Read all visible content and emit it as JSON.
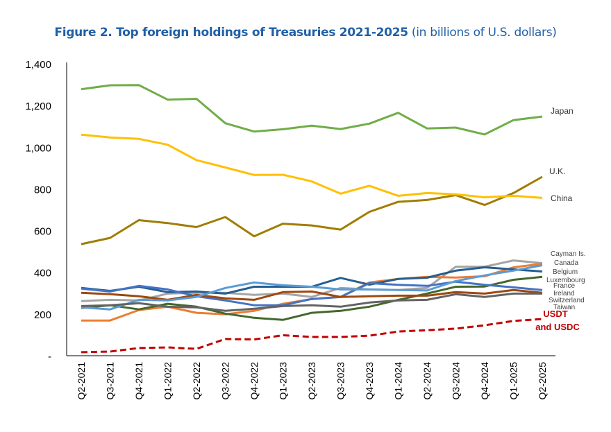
{
  "chart_data": {
    "type": "line",
    "title": "Figure 2. Top foreign holdings of Treasuries 2021-2025",
    "subtitle": "(in billions of U.S. dollars)",
    "xlabel": "",
    "ylabel": "",
    "ylim": [
      0,
      1400
    ],
    "yticks": [
      {
        "value": 0,
        "label": "-"
      },
      {
        "value": 200,
        "label": "200"
      },
      {
        "value": 400,
        "label": "400"
      },
      {
        "value": 600,
        "label": "600"
      },
      {
        "value": 800,
        "label": "800"
      },
      {
        "value": 1000,
        "label": "1,000"
      },
      {
        "value": 1200,
        "label": "1,200"
      },
      {
        "value": 1400,
        "label": "1,400"
      }
    ],
    "grid": false,
    "legend": "direct labels at right",
    "categories": [
      "Q2-2021",
      "Q3-2021",
      "Q4-2021",
      "Q1-2022",
      "Q2-2022",
      "Q3-2022",
      "Q4-2022",
      "Q1-2023",
      "Q2-2023",
      "Q3-2023",
      "Q4-2023",
      "Q1-2024",
      "Q2-2024",
      "Q3-2024",
      "Q4-2024",
      "Q1-2025",
      "Q2-2025"
    ],
    "series": [
      {
        "name": "Japan",
        "color": "#70ad47",
        "values": [
          1278,
          1297,
          1298,
          1228,
          1232,
          1115,
          1075,
          1086,
          1103,
          1087,
          1113,
          1165,
          1090,
          1094,
          1061,
          1130,
          1147
        ]
      },
      {
        "name": "U.K.",
        "color": "#a07d00",
        "values": [
          535,
          565,
          650,
          636,
          617,
          665,
          573,
          633,
          625,
          605,
          690,
          738,
          747,
          770,
          723,
          780,
          858
        ]
      },
      {
        "name": "China",
        "color": "#ffc000",
        "values": [
          1060,
          1047,
          1040,
          1012,
          938,
          903,
          867,
          868,
          836,
          777,
          815,
          767,
          780,
          774,
          760,
          767,
          757
        ]
      },
      {
        "name": "Cayman Is.",
        "color": "#a5a5a5",
        "values": [
          262,
          268,
          265,
          298,
          302,
          302,
          292,
          298,
          282,
          325,
          318,
          315,
          325,
          427,
          427,
          457,
          444
        ]
      },
      {
        "name": "Canada",
        "color": "#ed7d31",
        "values": [
          169,
          169,
          219,
          235,
          206,
          199,
          215,
          249,
          272,
          282,
          351,
          368,
          378,
          375,
          381,
          424,
          441
        ]
      },
      {
        "name": "Belgium",
        "color": "#255e91",
        "values": [
          325,
          311,
          331,
          305,
          308,
          298,
          331,
          331,
          331,
          373,
          341,
          368,
          374,
          408,
          424,
          414,
          404
        ]
      },
      {
        "name": "Luxembourg",
        "color": "#43682b",
        "values": [
          229,
          242,
          222,
          249,
          235,
          202,
          182,
          172,
          206,
          215,
          235,
          268,
          298,
          331,
          332,
          364,
          378
        ]
      },
      {
        "name": "France",
        "color": "#4472c4",
        "values": [
          322,
          308,
          335,
          318,
          285,
          265,
          242,
          242,
          272,
          282,
          348,
          340,
          335,
          355,
          340,
          328,
          315
        ]
      },
      {
        "name": "Ireland",
        "color": "#9e480e",
        "values": [
          302,
          295,
          285,
          268,
          292,
          275,
          268,
          305,
          308,
          282,
          285,
          288,
          288,
          305,
          298,
          315,
          302
        ]
      },
      {
        "name": "Switzerland",
        "color": "#5b9bd5",
        "values": [
          232,
          222,
          268,
          265,
          282,
          325,
          351,
          338,
          331,
          318,
          318,
          315,
          313,
          358,
          385,
          408,
          434
        ]
      },
      {
        "name": "Taiwan",
        "color": "#636363",
        "values": [
          238,
          242,
          252,
          235,
          232,
          215,
          225,
          238,
          242,
          235,
          255,
          265,
          268,
          295,
          282,
          298,
          298
        ]
      },
      {
        "name": "USDT and USDC",
        "color": "#c00000",
        "dashed": true,
        "values": [
          17,
          20,
          37,
          40,
          33,
          80,
          78,
          98,
          90,
          90,
          96,
          116,
          122,
          130,
          146,
          167,
          176
        ]
      }
    ]
  }
}
